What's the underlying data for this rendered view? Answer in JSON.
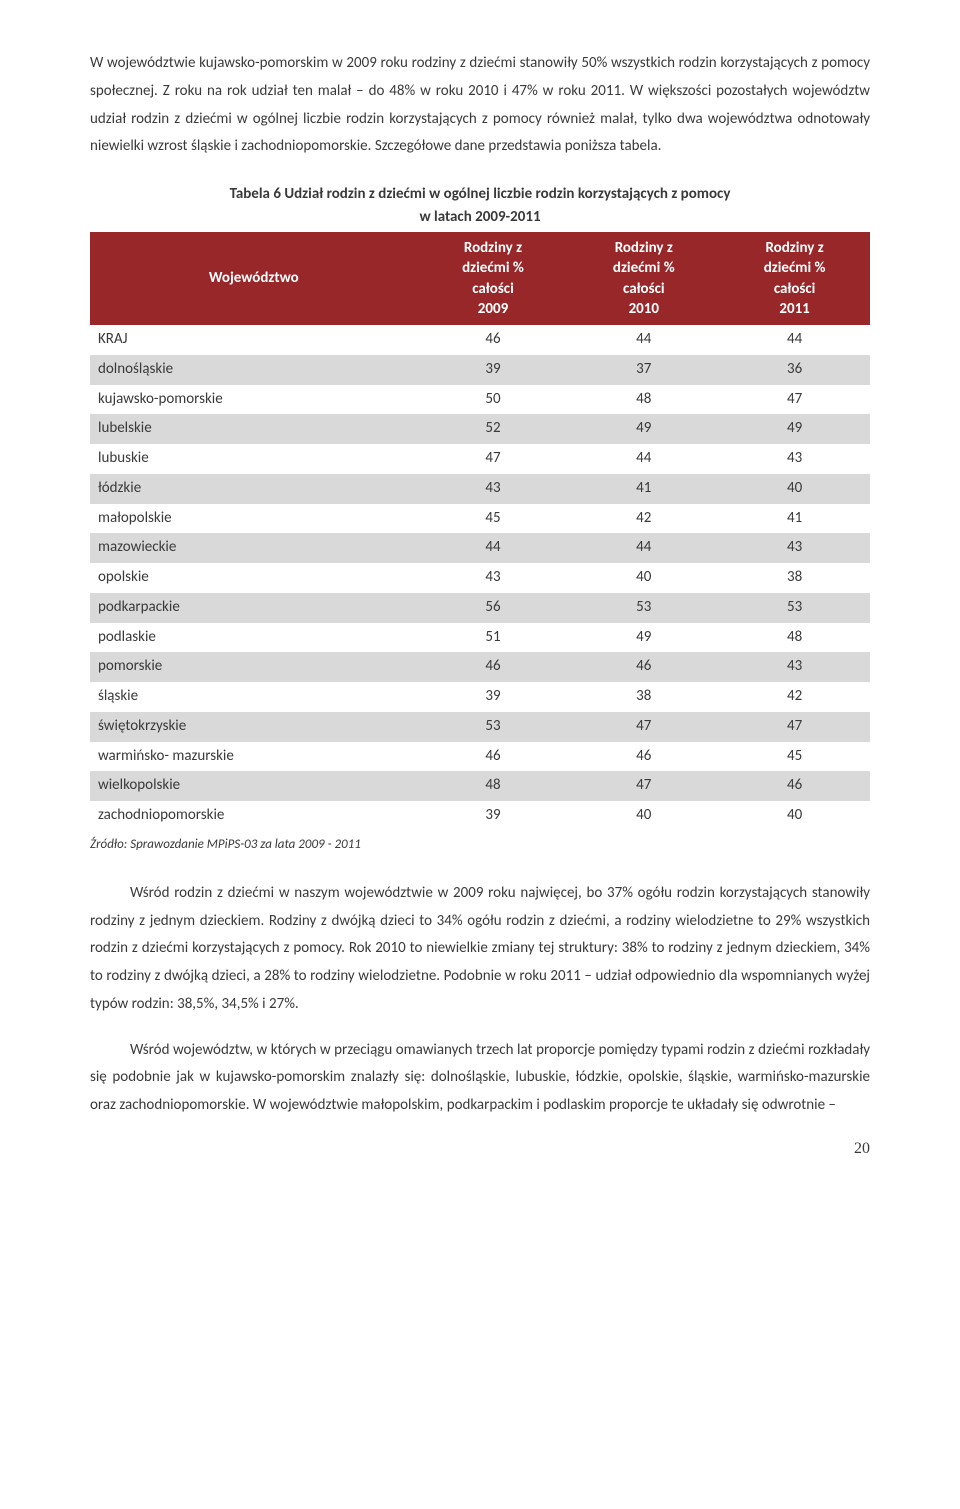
{
  "paragraphs": {
    "p1": "W województwie kujawsko-pomorskim w 2009 roku rodziny z dziećmi stanowiły 50% wszystkich rodzin korzystających z pomocy społecznej. Z roku na rok udział ten malał – do 48% w roku 2010 i 47% w roku 2011. W większości pozostałych województw udział rodzin z dziećmi w ogólnej liczbie rodzin korzystających z pomocy również malał, tylko dwa województwa odnotowały niewielki wzrost śląskie i zachodniopomorskie. Szczegółowe dane przedstawia poniższa tabela.",
    "p2": "Wśród rodzin z dziećmi w naszym województwie w 2009 roku najwięcej, bo 37% ogółu rodzin korzystających stanowiły rodziny z jednym dzieckiem. Rodziny z dwójką dzieci to 34% ogółu rodzin z dziećmi, a rodziny wielodzietne to 29% wszystkich rodzin z dziećmi korzystających z pomocy. Rok 2010 to niewielkie zmiany tej struktury: 38% to rodziny z jednym dzieckiem, 34% to rodziny z dwójką dzieci, a 28% to rodziny wielodzietne. Podobnie w roku 2011 – udział odpowiednio dla wspomnianych wyżej typów rodzin: 38,5%, 34,5% i 27%.",
    "p3": "Wśród województw, w których w przeciągu omawianych trzech lat proporcje pomiędzy typami rodzin z dziećmi rozkładały się podobnie jak w kujawsko-pomorskim znalazły się: dolnośląskie, lubuskie, łódzkie, opolskie, śląskie, warmińsko-mazurskie oraz zachodniopomorskie. W województwie małopolskim, podkarpackim i podlaskim proporcje te układały się odwrotnie –"
  },
  "table": {
    "caption_l1": "Tabela 6  Udział rodzin z dziećmi w ogólnej liczbie rodzin korzystających z pomocy",
    "caption_l2": "w latach 2009-2011",
    "header_bg": "#98272a",
    "header_fg": "#ffffff",
    "row_light": "#ffffff",
    "row_dark": "#d9d9d9",
    "columns": [
      "Województwo",
      "Rodziny z dziećmi % całości 2009",
      "Rodziny z dziećmi % całości 2010",
      "Rodziny z dziećmi % całości 2011"
    ],
    "rows": [
      {
        "label": "KRAJ",
        "v": [
          46,
          44,
          44
        ],
        "shade": "light"
      },
      {
        "label": "dolnośląskie",
        "v": [
          39,
          37,
          36
        ],
        "shade": "dark"
      },
      {
        "label": "kujawsko-pomorskie",
        "v": [
          50,
          48,
          47
        ],
        "shade": "light"
      },
      {
        "label": "lubelskie",
        "v": [
          52,
          49,
          49
        ],
        "shade": "dark"
      },
      {
        "label": "lubuskie",
        "v": [
          47,
          44,
          43
        ],
        "shade": "light"
      },
      {
        "label": "łódzkie",
        "v": [
          43,
          41,
          40
        ],
        "shade": "dark"
      },
      {
        "label": "małopolskie",
        "v": [
          45,
          42,
          41
        ],
        "shade": "light"
      },
      {
        "label": "mazowieckie",
        "v": [
          44,
          44,
          43
        ],
        "shade": "dark"
      },
      {
        "label": "opolskie",
        "v": [
          43,
          40,
          38
        ],
        "shade": "light"
      },
      {
        "label": "podkarpackie",
        "v": [
          56,
          53,
          53
        ],
        "shade": "dark"
      },
      {
        "label": "podlaskie",
        "v": [
          51,
          49,
          48
        ],
        "shade": "light"
      },
      {
        "label": "pomorskie",
        "v": [
          46,
          46,
          43
        ],
        "shade": "dark"
      },
      {
        "label": "śląskie",
        "v": [
          39,
          38,
          42
        ],
        "shade": "light"
      },
      {
        "label": "świętokrzyskie",
        "v": [
          53,
          47,
          47
        ],
        "shade": "dark"
      },
      {
        "label": "warmińsko- mazurskie",
        "v": [
          46,
          46,
          45
        ],
        "shade": "light"
      },
      {
        "label": "wielkopolskie",
        "v": [
          48,
          47,
          46
        ],
        "shade": "dark"
      },
      {
        "label": "zachodniopomorskie",
        "v": [
          39,
          40,
          40
        ],
        "shade": "light"
      }
    ],
    "source": "Źródło: Sprawozdanie MPiPS-03 za lata 2009 - 2011"
  },
  "page_number": "20"
}
